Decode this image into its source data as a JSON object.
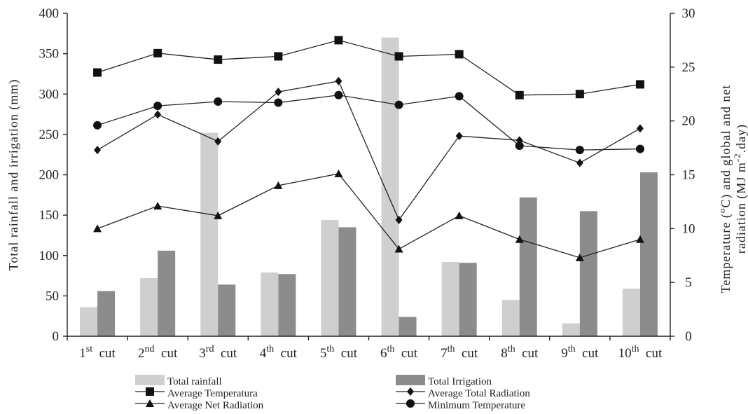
{
  "chart_data": {
    "type": "bar",
    "categories": [
      {
        "ord": "1",
        "sup": "st",
        "word": "cut"
      },
      {
        "ord": "2",
        "sup": "nd",
        "word": "cut"
      },
      {
        "ord": "3",
        "sup": "rd",
        "word": "cut"
      },
      {
        "ord": "4",
        "sup": "th",
        "word": "cut"
      },
      {
        "ord": "5",
        "sup": "th",
        "word": "cut"
      },
      {
        "ord": "6",
        "sup": "th",
        "word": "cut"
      },
      {
        "ord": "7",
        "sup": "th",
        "word": "cut"
      },
      {
        "ord": "8",
        "sup": "th",
        "word": "cut"
      },
      {
        "ord": "9",
        "sup": "th",
        "word": "cut"
      },
      {
        "ord": "10",
        "sup": "th",
        "word": "cut"
      }
    ],
    "left_axis": {
      "label": "Total rainfall and irrigation (mm)",
      "ylim": [
        0,
        400
      ],
      "ticks": [
        0,
        50,
        100,
        150,
        200,
        250,
        300,
        350,
        400
      ]
    },
    "right_axis": {
      "label_line1_parts": [
        "Temperature (",
        "o",
        "C) and global and net"
      ],
      "label_line2_parts": [
        "radiation (MJ m",
        "-2",
        ".day)"
      ],
      "ylim": [
        0,
        30
      ],
      "ticks": [
        0,
        5,
        10,
        15,
        20,
        25,
        30
      ]
    },
    "bar_series": [
      {
        "name": "Total rainfall",
        "color": "#cfcfcf",
        "values": [
          36,
          72,
          252,
          79,
          144,
          370,
          92,
          45,
          16,
          59
        ]
      },
      {
        "name": "Total Irrigation",
        "color": "#8c8c8c",
        "values": [
          56,
          106,
          64,
          77,
          135,
          24,
          91,
          172,
          155,
          203
        ]
      }
    ],
    "line_series": [
      {
        "name": "Average Temperatura",
        "marker": "square",
        "axis": "right",
        "values": [
          24.5,
          26.3,
          25.7,
          26.0,
          27.5,
          26.0,
          26.2,
          22.4,
          22.5,
          23.4
        ]
      },
      {
        "name": "Average Total Radiation",
        "marker": "diamond",
        "axis": "right",
        "values": [
          17.3,
          20.6,
          18.1,
          22.7,
          23.7,
          10.8,
          18.6,
          18.2,
          16.1,
          19.3
        ]
      },
      {
        "name": "Average Net Radiation",
        "marker": "triangle",
        "axis": "right",
        "values": [
          10.0,
          12.1,
          11.2,
          14.0,
          15.1,
          8.1,
          11.2,
          9.0,
          7.3,
          9.0
        ]
      },
      {
        "name": "Minimum Temperature",
        "marker": "circle",
        "axis": "right",
        "values": [
          19.6,
          21.4,
          21.8,
          21.7,
          22.4,
          21.5,
          22.3,
          17.7,
          17.3,
          17.4
        ]
      }
    ],
    "legend": {
      "placement": "bottom",
      "order": [
        "Total rainfall",
        "Total Irrigation",
        "Average Temperatura",
        "Average Total Radiation",
        "Average Net Radiation",
        "Minimum Temperature"
      ]
    },
    "grid": false
  }
}
